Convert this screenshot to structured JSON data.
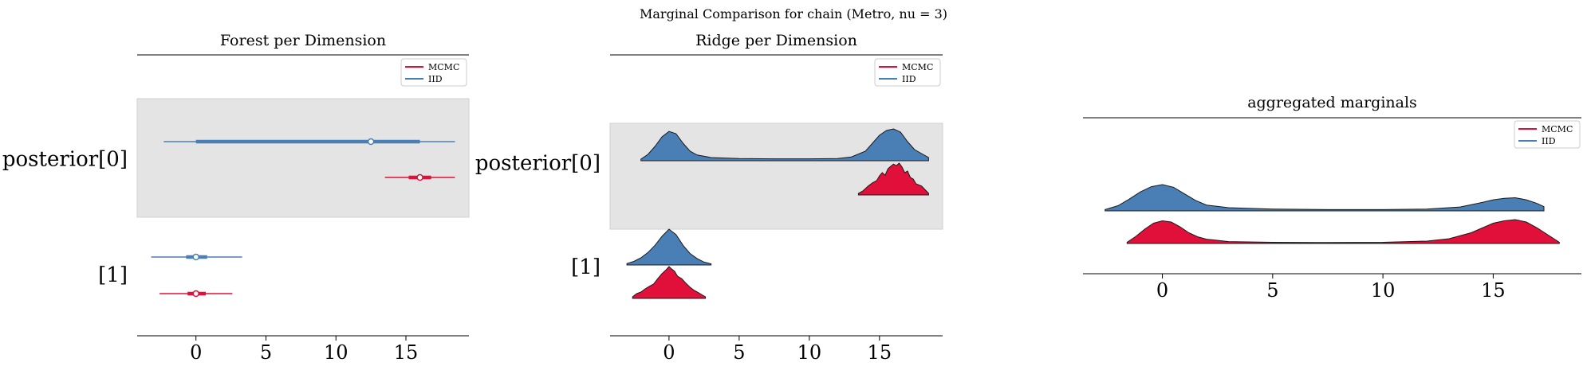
{
  "suptitle": "Marginal Comparison for chain (Metro, nu = 3)",
  "colors": {
    "mcmc": "#e0103a",
    "iid": "#4a7fb5",
    "shade": "#e4e4e4"
  },
  "legend": [
    "MCMC",
    "IID"
  ],
  "chart_data": [
    {
      "type": "forest",
      "title": "Forest per Dimension",
      "xlim": [
        -4.2,
        19.5
      ],
      "xticks": [
        "0",
        "5",
        "10",
        "15"
      ],
      "rows": [
        {
          "label": "posterior[0]",
          "shaded": true,
          "series": [
            {
              "name": "IID",
              "hdi": [
                -2.3,
                18.5
              ],
              "iqr": [
                0.0,
                16.0
              ],
              "point": 12.5
            },
            {
              "name": "MCMC",
              "hdi": [
                13.5,
                18.5
              ],
              "iqr": [
                15.2,
                16.8
              ],
              "point": 16.0
            }
          ]
        },
        {
          "label": "[1]",
          "shaded": false,
          "series": [
            {
              "name": "IID",
              "hdi": [
                -3.2,
                3.3
              ],
              "iqr": [
                -0.7,
                0.8
              ],
              "point": 0.0
            },
            {
              "name": "MCMC",
              "hdi": [
                -2.6,
                2.6
              ],
              "iqr": [
                -0.6,
                0.7
              ],
              "point": 0.0
            }
          ]
        }
      ]
    },
    {
      "type": "ridge",
      "title": "Ridge per Dimension",
      "xlim": [
        -4.2,
        19.5
      ],
      "xticks": [
        "0",
        "5",
        "10",
        "15"
      ],
      "rows": [
        {
          "label": "posterior[0]",
          "shaded": true,
          "series": [
            {
              "name": "IID",
              "x": [
                -2.0,
                -1.5,
                -1.0,
                -0.5,
                0.0,
                0.5,
                1.0,
                1.5,
                2.0,
                3.0,
                5.0,
                7.5,
                10.0,
                12.0,
                13.0,
                14.0,
                14.5,
                15.0,
                15.5,
                16.0,
                16.5,
                17.0,
                17.5,
                18.5
              ],
              "y": [
                0.05,
                0.2,
                0.45,
                0.75,
                0.92,
                0.85,
                0.55,
                0.3,
                0.18,
                0.1,
                0.07,
                0.06,
                0.06,
                0.07,
                0.12,
                0.3,
                0.55,
                0.8,
                0.95,
                1.0,
                0.9,
                0.6,
                0.35,
                0.1
              ]
            },
            {
              "name": "MCMC",
              "x": [
                13.5,
                13.8,
                14.2,
                14.5,
                14.8,
                15.0,
                15.2,
                15.4,
                15.6,
                15.8,
                16.0,
                16.2,
                16.4,
                16.6,
                16.8,
                17.0,
                17.2,
                17.4,
                17.6,
                18.0,
                18.5
              ],
              "y": [
                0.05,
                0.12,
                0.28,
                0.38,
                0.45,
                0.6,
                0.7,
                0.62,
                0.82,
                0.9,
                0.97,
                0.92,
                1.0,
                0.88,
                0.7,
                0.75,
                0.55,
                0.5,
                0.35,
                0.28,
                0.05
              ]
            }
          ]
        },
        {
          "label": "[1]",
          "shaded": false,
          "series": [
            {
              "name": "IID",
              "x": [
                -3.0,
                -2.5,
                -2.0,
                -1.5,
                -1.0,
                -0.5,
                0.0,
                0.5,
                1.0,
                1.5,
                2.0,
                2.5,
                3.0
              ],
              "y": [
                0.04,
                0.1,
                0.2,
                0.35,
                0.55,
                0.8,
                1.0,
                0.85,
                0.55,
                0.32,
                0.18,
                0.08,
                0.03
              ]
            },
            {
              "name": "MCMC",
              "x": [
                -2.6,
                -2.3,
                -2.0,
                -1.7,
                -1.4,
                -1.1,
                -0.8,
                -0.5,
                -0.2,
                0.0,
                0.2,
                0.4,
                0.6,
                0.9,
                1.2,
                1.5,
                1.8,
                2.1,
                2.4,
                2.6
              ],
              "y": [
                0.05,
                0.15,
                0.2,
                0.3,
                0.38,
                0.45,
                0.62,
                0.78,
                0.9,
                1.0,
                0.92,
                0.85,
                0.7,
                0.62,
                0.48,
                0.35,
                0.25,
                0.18,
                0.1,
                0.05
              ]
            }
          ]
        }
      ]
    },
    {
      "type": "ridge",
      "title": "aggregated marginals",
      "xlim": [
        -3.6,
        19.0
      ],
      "xticks": [
        "0",
        "5",
        "10",
        "15"
      ],
      "rows": [
        {
          "label": "",
          "shaded": false,
          "series": [
            {
              "name": "IID",
              "x": [
                -2.6,
                -2.0,
                -1.5,
                -1.0,
                -0.5,
                0.0,
                0.5,
                1.0,
                1.5,
                2.0,
                3.0,
                5.0,
                7.5,
                10.0,
                12.0,
                13.5,
                14.5,
                15.0,
                15.5,
                16.0,
                16.5,
                17.0,
                17.3
              ],
              "y": [
                0.05,
                0.2,
                0.45,
                0.72,
                0.92,
                1.0,
                0.9,
                0.65,
                0.4,
                0.22,
                0.12,
                0.07,
                0.05,
                0.05,
                0.07,
                0.15,
                0.32,
                0.42,
                0.48,
                0.5,
                0.42,
                0.28,
                0.16
              ]
            },
            {
              "name": "MCMC",
              "x": [
                -1.6,
                -1.2,
                -0.8,
                -0.4,
                0.0,
                0.4,
                0.8,
                1.2,
                1.6,
                2.0,
                3.0,
                5.0,
                7.5,
                10.0,
                12.0,
                13.0,
                14.0,
                14.5,
                15.0,
                15.5,
                16.0,
                16.5,
                17.0,
                17.5,
                18.0
              ],
              "y": [
                0.05,
                0.3,
                0.6,
                0.85,
                0.95,
                0.9,
                0.7,
                0.45,
                0.28,
                0.18,
                0.08,
                0.05,
                0.04,
                0.05,
                0.1,
                0.2,
                0.45,
                0.65,
                0.85,
                0.95,
                1.0,
                0.9,
                0.65,
                0.35,
                0.05
              ]
            }
          ]
        }
      ]
    }
  ]
}
